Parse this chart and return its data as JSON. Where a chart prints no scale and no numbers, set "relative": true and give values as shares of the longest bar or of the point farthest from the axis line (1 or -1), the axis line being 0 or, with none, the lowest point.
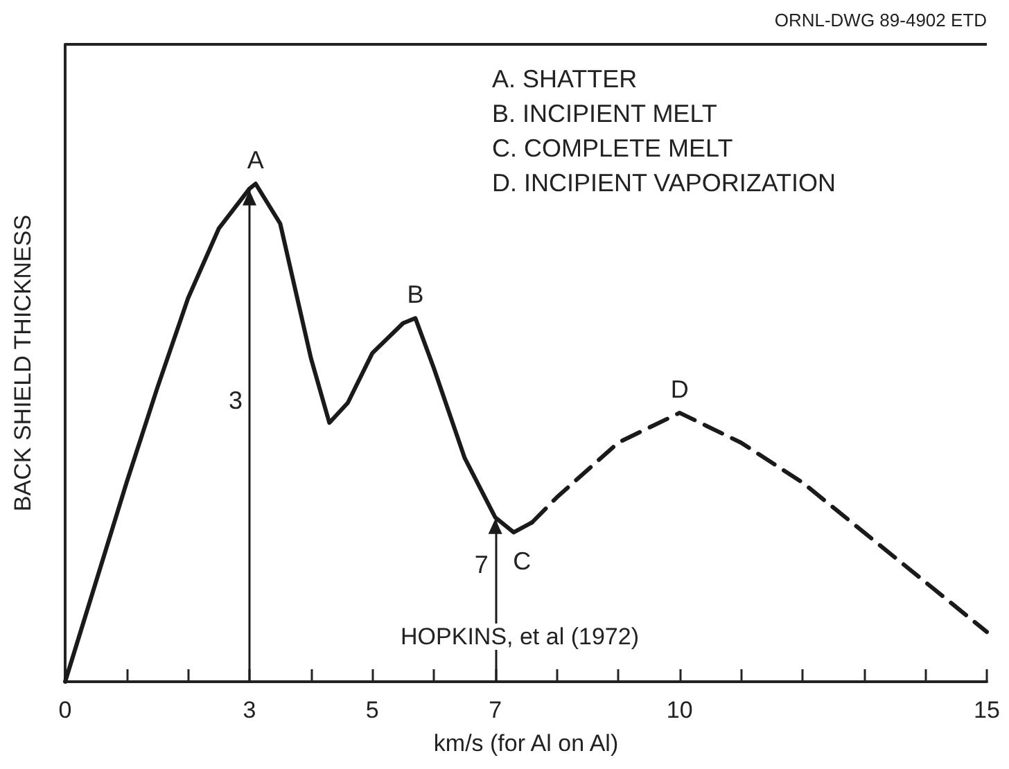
{
  "chart_data": {
    "type": "line",
    "relative": true,
    "xlabel": "km/s (for Al on Al)",
    "ylabel": "BACK SHIELD THICKNESS",
    "xlim": [
      0,
      15
    ],
    "xticks": [
      0,
      {
        "value": 1,
        "label": null
      },
      {
        "value": 2,
        "label": null
      },
      3,
      {
        "value": 4,
        "label": null
      },
      5,
      {
        "value": 6,
        "label": null
      },
      7,
      {
        "value": 8,
        "label": null
      },
      {
        "value": 9,
        "label": null
      },
      10,
      {
        "value": 11,
        "label": null
      },
      {
        "value": 12,
        "label": null
      },
      {
        "value": 13,
        "label": null
      },
      {
        "value": 14,
        "label": null
      },
      15
    ],
    "grid": false,
    "marker": "none",
    "series": [
      {
        "color": "#1a1a1a",
        "line_style": "solid",
        "x": [
          0,
          0.5,
          1,
          1.5,
          2,
          2.5,
          3,
          3.1,
          3.5,
          4,
          4.3,
          4.6,
          5,
          5.5,
          5.7,
          6,
          6.5,
          7,
          7.3,
          7.6
        ],
        "values": [
          0,
          0.2,
          0.4,
          0.59,
          0.77,
          0.91,
          0.99,
          1,
          0.92,
          0.65,
          0.52,
          0.56,
          0.66,
          0.72,
          0.73,
          0.63,
          0.45,
          0.33,
          0.3,
          0.32
        ]
      },
      {
        "color": "#1a1a1a",
        "line_style": "dashed",
        "x": [
          7.6,
          8,
          9,
          10,
          11,
          12,
          13,
          14,
          15
        ],
        "values": [
          0.32,
          0.37,
          0.48,
          0.54,
          0.48,
          0.4,
          0.3,
          0.2,
          0.1
        ]
      }
    ],
    "annotations": [
      "ORNL-DWG 89-4902 ETD",
      "A. SHATTER",
      "B. INCIPIENT MELT",
      "C. COMPLETE MELT",
      "D. INCIPIENT VAPORIZATION",
      "HOPKINS, et al (1972)",
      {
        "text": "A",
        "x": 3.1,
        "y": 1
      },
      {
        "text": "B",
        "x": 5.7,
        "y": 0.73
      },
      {
        "text": "C",
        "x": 7.3,
        "y": 0.3
      },
      {
        "text": "D",
        "x": 10,
        "y": 0.54
      }
    ],
    "ref_lines": [
      {
        "axis": "x",
        "value": 3,
        "label": "3",
        "color": "#1a1a1a",
        "line_style": "solid"
      },
      {
        "axis": "x",
        "value": 7,
        "label": "7",
        "color": "#1a1a1a",
        "line_style": "solid"
      }
    ]
  }
}
